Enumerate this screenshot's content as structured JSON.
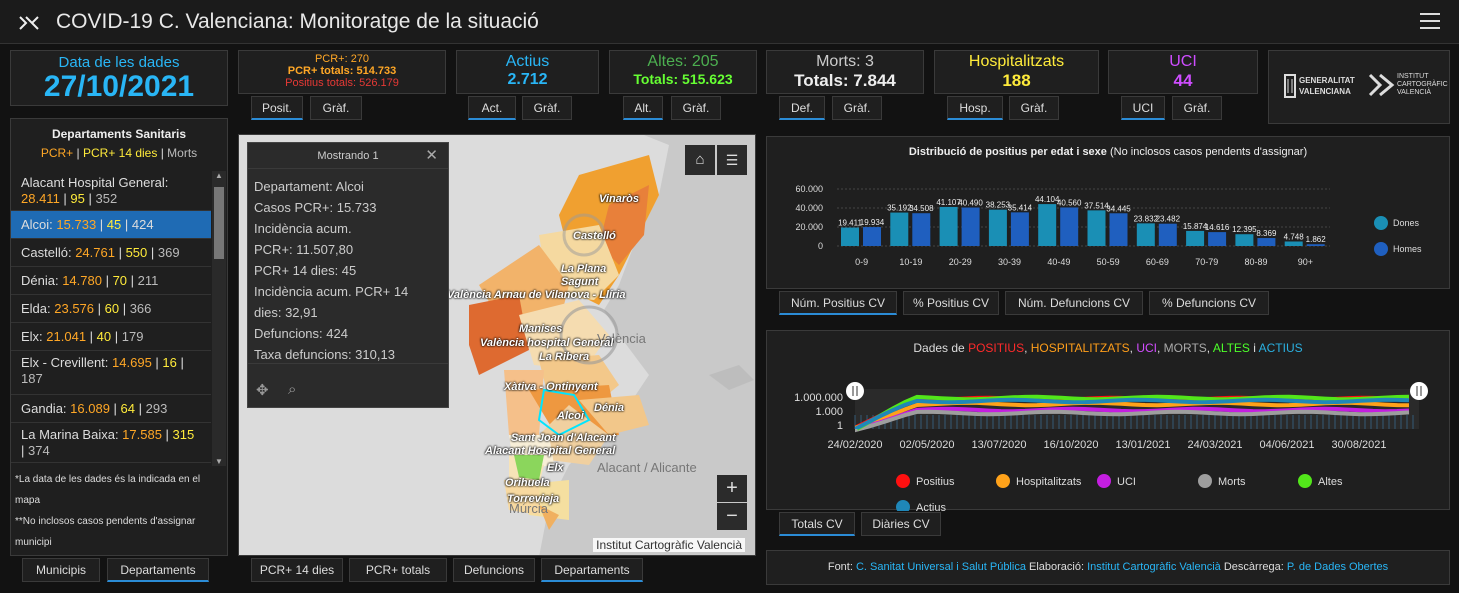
{
  "header": {
    "title": "COVID-19 C. Valenciana: Monitoratge de la situació"
  },
  "date": {
    "label": "Data de les dades",
    "value": "27/10/2021"
  },
  "pcr": {
    "line1": "PCR+: 270",
    "line2": "PCR+ totals: 514.733",
    "line3": "Positius totals: 526.179",
    "tab1": "Posit.",
    "tab2": "Gràf."
  },
  "actius": {
    "label": "Actius",
    "value": "2.712",
    "tab1": "Act.",
    "tab2": "Gràf."
  },
  "altes": {
    "label": "Altes: 205",
    "value": "Totals: 515.623",
    "tab1": "Alt.",
    "tab2": "Gràf."
  },
  "morts": {
    "label": "Morts: 3",
    "value": "Totals: 7.844",
    "tab1": "Def.",
    "tab2": "Gràf."
  },
  "hosp": {
    "label": "Hospitalitzats",
    "value": "188",
    "tab1": "Hosp.",
    "tab2": "Gràf."
  },
  "uci": {
    "label": "UCI",
    "value": "44",
    "tab1": "UCI",
    "tab2": "Gràf."
  },
  "logos": {
    "gva": "GENERALITAT VALENCIANA",
    "icv": "INSTITUT CARTOGRÀFIC VALENCIÀ"
  },
  "depts": {
    "title": "Departaments Sanitaris",
    "legend_a": "PCR+",
    "legend_sep1": " | ",
    "legend_b": "PCR+ 14 dies",
    "legend_sep2": " | ",
    "legend_c": "Morts",
    "items": [
      {
        "name": "Alacant Hospital General: ",
        "a": "28.411",
        "b": "95",
        "c": "352"
      },
      {
        "name": "Alcoi: ",
        "a": "15.733",
        "b": "45",
        "c": "424"
      },
      {
        "name": "Castelló: ",
        "a": "24.761",
        "b": "550",
        "c": "369"
      },
      {
        "name": "Dénia: ",
        "a": "14.780",
        "b": "70",
        "c": "211"
      },
      {
        "name": "Elda: ",
        "a": "23.576",
        "b": "60",
        "c": "366"
      },
      {
        "name": "Elx: ",
        "a": "21.041",
        "b": "40",
        "c": "179"
      },
      {
        "name": "Elx - Crevillent: ",
        "a": "14.695",
        "b": "16",
        "c": "187"
      },
      {
        "name": "Gandia: ",
        "a": "16.089",
        "b": "64",
        "c": "293"
      },
      {
        "name": "La Marina Baixa: ",
        "a": "17.585",
        "b": "315",
        "c": "374"
      }
    ],
    "note1": "*La data de les dades és la indicada en el mapa",
    "note2": "**No inclosos casos pendents d'assignar municipi",
    "tab1": "Municipis",
    "tab2": "Departaments"
  },
  "popup": {
    "header": "Mostrando 1",
    "lines": [
      "Departament: Alcoi",
      "Casos PCR+: 15.733",
      "Incidència acum.",
      "PCR+: 11.507,80",
      "PCR+ 14 dies: 45",
      "Incidència acum. PCR+ 14",
      "dies: 32,91",
      "Defuncions: 424",
      "Taxa defuncions: 310,13"
    ]
  },
  "map": {
    "labels": [
      "Vinaròs",
      "Castelló",
      "La Plana",
      "Sagunt",
      "València Arnau de Vilanova - Llíria",
      "Manises",
      "València",
      "València hospital General",
      "La Ribera",
      "Xàtiva - Ontinyent",
      "Dénia",
      "Alcoi",
      "Sant Joan d'Alacant",
      "Alacant Hospital General",
      "Alacant / Alicante",
      "Elx",
      "Orihuela",
      "Torrevieja",
      "Múrcia"
    ],
    "attribution": "Institut Cartogràfic Valencià",
    "zoom_in": "+",
    "zoom_out": "−",
    "tabs": [
      "PCR+ 14 dies",
      "PCR+ totals",
      "Defuncions",
      "Departaments"
    ]
  },
  "bar_chart": {
    "title": "Distribució de positius per edat i sexe",
    "subtitle": "(No inclosos casos pendents d'assignar)",
    "tabs": [
      "Núm. Positius CV",
      "% Positius CV",
      "Núm. Defuncions CV",
      "% Defuncions CV"
    ],
    "colors": {
      "Dones": "#1a8fb5",
      "Homes": "#1f5fbf"
    }
  },
  "line_chart": {
    "title_prefix": "Dades de ",
    "parts": [
      {
        "t": "POSITIUS",
        "c": "#ff2a2a"
      },
      {
        "t": ", ",
        "c": "#ddd"
      },
      {
        "t": "HOSPITALITZATS",
        "c": "#ff9e1a"
      },
      {
        "t": ", ",
        "c": "#ddd"
      },
      {
        "t": "UCI",
        "c": "#d24dff"
      },
      {
        "t": ", ",
        "c": "#ddd"
      },
      {
        "t": "MORTS",
        "c": "#aaa"
      },
      {
        "t": ", ",
        "c": "#ddd"
      },
      {
        "t": "ALTES",
        "c": "#4dff2a"
      },
      {
        "t": " i ",
        "c": "#ddd"
      },
      {
        "t": "ACTIUS",
        "c": "#2ab0e0"
      }
    ],
    "tabs": [
      "Totals CV",
      "Diàries CV"
    ],
    "legend": [
      {
        "name": "Positius",
        "color": "#ff1010"
      },
      {
        "name": "Hospitalitzats",
        "color": "#ffa21a"
      },
      {
        "name": "UCI",
        "color": "#c41ee0"
      },
      {
        "name": "Morts",
        "color": "#9e9e9e"
      },
      {
        "name": "Altes",
        "color": "#52e61a"
      },
      {
        "name": "Actius",
        "color": "#1f87b8"
      }
    ]
  },
  "footer": {
    "font_label": "Font: ",
    "font_link": "C. Sanitat Universal i Salut Pública",
    "elab_label": " Elaboració: ",
    "elab_link": "Institut Cartogràfic Valencià",
    "desc_label": " Descàrrega: ",
    "desc_link": "P. de Dades Obertes"
  },
  "chart_data": [
    {
      "type": "bar",
      "title": "Distribució de positius per edat i sexe",
      "categories": [
        "0-9",
        "10-19",
        "20-29",
        "30-39",
        "40-49",
        "50-59",
        "60-69",
        "70-79",
        "80-89",
        "90+"
      ],
      "series": [
        {
          "name": "Dones",
          "values": [
            19411,
            35192,
            41107,
            38253,
            44104,
            37514,
            23832,
            15874,
            12395,
            4748
          ]
        },
        {
          "name": "Homes",
          "values": [
            19934,
            34508,
            40490,
            35414,
            40560,
            34445,
            23482,
            14616,
            8369,
            1862
          ]
        }
      ],
      "value_labels": {
        "Dones": [
          "19.411",
          "35.192",
          "41.107",
          "38.253",
          "44.104",
          "37.514",
          "23.832",
          "15.874",
          "12.395",
          "4.748"
        ],
        "Homes": [
          "19.934",
          "34.508",
          "40.490",
          "35.414",
          "40.560",
          "34.445",
          "23.482",
          "14.616",
          "8.369",
          "1.862"
        ]
      },
      "yticks": [
        "0",
        "20.000",
        "40.000",
        "60.000"
      ],
      "ylim": [
        0,
        60000
      ],
      "legend": "right"
    },
    {
      "type": "line",
      "title": "Dades de POSITIUS, HOSPITALITZATS, UCI, MORTS, ALTES i ACTIUS",
      "x_ticks": [
        "24/02/2020",
        "02/05/2020",
        "13/07/2020",
        "16/10/2020",
        "13/01/2021",
        "24/03/2021",
        "04/06/2021",
        "30/08/2021"
      ],
      "y_ticks": [
        "1",
        "1.000",
        "1.000.000"
      ],
      "y_scale": "log",
      "legend": "bottom"
    }
  ]
}
